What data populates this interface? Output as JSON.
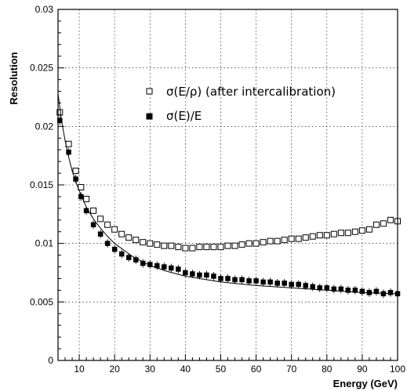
{
  "chart_data": {
    "type": "scatter",
    "title": "",
    "xlabel": "Energy (GeV)",
    "ylabel": "Resolution",
    "xlim": [
      4,
      100
    ],
    "ylim": [
      0,
      0.03
    ],
    "xticks": [
      10,
      20,
      30,
      40,
      50,
      60,
      70,
      80,
      90,
      100
    ],
    "xtick_labels": [
      "10",
      "20",
      "30",
      "40",
      "50",
      "60",
      "70",
      "80",
      "90",
      "100"
    ],
    "yticks": [
      0,
      0.005,
      0.01,
      0.015,
      0.02,
      0.025,
      0.03
    ],
    "ytick_labels": [
      "0",
      "0.005",
      "0.01",
      "0.015",
      "0.02",
      "0.025",
      "0.03"
    ],
    "grid": true,
    "legend_position": "top-right",
    "series": [
      {
        "name": "σ(E/ρ) (after intercalibration)",
        "marker": "open-square",
        "x": [
          4.5,
          7,
          9,
          10.5,
          12,
          14,
          16,
          18,
          20,
          22,
          24,
          26,
          28,
          30,
          32,
          34,
          36,
          38,
          40,
          42,
          44,
          46,
          48,
          50,
          52,
          54,
          56,
          58,
          60,
          62,
          64,
          66,
          68,
          70,
          72,
          74,
          76,
          78,
          80,
          82,
          84,
          86,
          88,
          90,
          92,
          94,
          96,
          98,
          100
        ],
        "y": [
          0.0212,
          0.0185,
          0.0162,
          0.0148,
          0.0138,
          0.0128,
          0.0121,
          0.0116,
          0.0112,
          0.0108,
          0.0105,
          0.0103,
          0.0101,
          0.01,
          0.0099,
          0.0098,
          0.0098,
          0.0097,
          0.0096,
          0.0096,
          0.0097,
          0.0097,
          0.0097,
          0.0097,
          0.0098,
          0.0098,
          0.0099,
          0.01,
          0.01,
          0.0101,
          0.0102,
          0.0102,
          0.0103,
          0.0104,
          0.0104,
          0.0105,
          0.0106,
          0.0107,
          0.0107,
          0.0108,
          0.0109,
          0.0109,
          0.011,
          0.0111,
          0.0112,
          0.0116,
          0.0117,
          0.012,
          0.0119
        ]
      },
      {
        "name": "σ(E)/E",
        "marker": "filled-square",
        "x": [
          4.5,
          7,
          9,
          10.5,
          12,
          14,
          16,
          18,
          20,
          22,
          24,
          26,
          28,
          30,
          32,
          34,
          36,
          38,
          40,
          42,
          44,
          46,
          48,
          50,
          52,
          54,
          56,
          58,
          60,
          62,
          64,
          66,
          68,
          70,
          72,
          74,
          76,
          78,
          80,
          82,
          84,
          86,
          88,
          90,
          92,
          94,
          96,
          98,
          100
        ],
        "y": [
          0.0205,
          0.0178,
          0.0155,
          0.014,
          0.0128,
          0.0116,
          0.0108,
          0.01,
          0.0095,
          0.0091,
          0.0088,
          0.0086,
          0.0083,
          0.0082,
          0.0081,
          0.008,
          0.0079,
          0.0078,
          0.0075,
          0.0074,
          0.0073,
          0.0073,
          0.0072,
          0.007,
          0.007,
          0.0069,
          0.0069,
          0.0068,
          0.0068,
          0.0067,
          0.0067,
          0.0066,
          0.0066,
          0.0065,
          0.0065,
          0.0064,
          0.0063,
          0.0062,
          0.0062,
          0.0061,
          0.0061,
          0.006,
          0.006,
          0.0059,
          0.0058,
          0.0059,
          0.0057,
          0.0058,
          0.0057
        ]
      }
    ],
    "fit_curve": {
      "x": [
        4,
        5,
        6,
        7,
        8,
        9,
        10,
        12,
        14,
        16,
        18,
        20,
        25,
        30,
        35,
        40,
        50,
        60,
        70,
        80,
        90,
        100
      ],
      "y": [
        0.0228,
        0.0205,
        0.0188,
        0.0174,
        0.0162,
        0.0153,
        0.0145,
        0.0131,
        0.0121,
        0.0113,
        0.0106,
        0.01,
        0.0089,
        0.0081,
        0.0076,
        0.0072,
        0.0067,
        0.0064,
        0.0062,
        0.006,
        0.0058,
        0.0057
      ]
    }
  }
}
